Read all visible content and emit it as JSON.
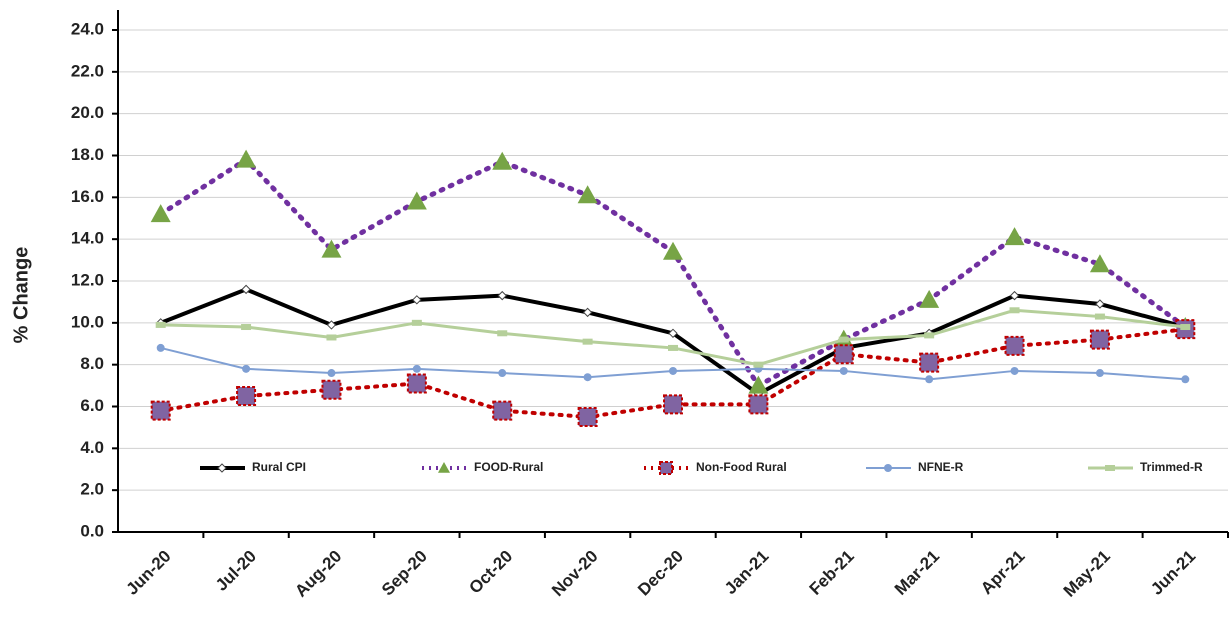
{
  "chart_data": {
    "type": "line",
    "y_label": "% Change",
    "categories": [
      "Jun-20",
      "Jul-20",
      "Aug-20",
      "Sep-20",
      "Oct-20",
      "Nov-20",
      "Dec-20",
      "Jan-21",
      "Feb-21",
      "Mar-21",
      "Apr-21",
      "May-21",
      "Jun-21"
    ],
    "ylim": [
      0,
      24
    ],
    "yticks": [
      {
        "value": 0,
        "label": "0.0"
      },
      {
        "value": 2,
        "label": "2.0"
      },
      {
        "value": 4,
        "label": "4.0"
      },
      {
        "value": 6,
        "label": "6.0"
      },
      {
        "value": 8,
        "label": "8.0"
      },
      {
        "value": 10,
        "label": "10.0"
      },
      {
        "value": 12,
        "label": "12.0"
      },
      {
        "value": 14,
        "label": "14.0"
      },
      {
        "value": 16,
        "label": "16.0"
      },
      {
        "value": 18,
        "label": "18.0"
      },
      {
        "value": 20,
        "label": "20.0"
      },
      {
        "value": 22,
        "label": "22.0"
      },
      {
        "value": 24,
        "label": "24.0"
      }
    ],
    "grid": true,
    "legend": "bottom",
    "series": [
      {
        "name": "Rural CPI",
        "color": "#000000",
        "values": [
          10.0,
          11.6,
          9.9,
          11.1,
          11.3,
          10.5,
          9.5,
          6.6,
          8.8,
          9.5,
          11.3,
          10.9,
          9.8
        ]
      },
      {
        "name": "FOOD-Rural",
        "color": "#7030a0",
        "marker_color": "#77a446",
        "values": [
          15.2,
          17.8,
          13.5,
          15.8,
          17.7,
          16.1,
          13.4,
          7.0,
          9.2,
          11.1,
          14.1,
          12.8,
          9.8
        ]
      },
      {
        "name": "Non-Food Rural",
        "color": "#c00000",
        "marker_color": "#8064a2",
        "values": [
          5.8,
          6.5,
          6.8,
          7.1,
          5.8,
          5.5,
          6.1,
          6.1,
          8.5,
          8.1,
          8.9,
          9.2,
          9.7
        ]
      },
      {
        "name": "NFNE-R",
        "color": "#7f9fd3",
        "values": [
          8.8,
          7.8,
          7.6,
          7.8,
          7.6,
          7.4,
          7.7,
          7.8,
          7.7,
          7.3,
          7.7,
          7.6,
          7.3
        ]
      },
      {
        "name": "Trimmed-R",
        "color": "#b5cf9a",
        "values": [
          9.9,
          9.8,
          9.3,
          10.0,
          9.5,
          9.1,
          8.8,
          8.0,
          9.2,
          9.4,
          10.6,
          10.3,
          9.8
        ]
      }
    ]
  }
}
